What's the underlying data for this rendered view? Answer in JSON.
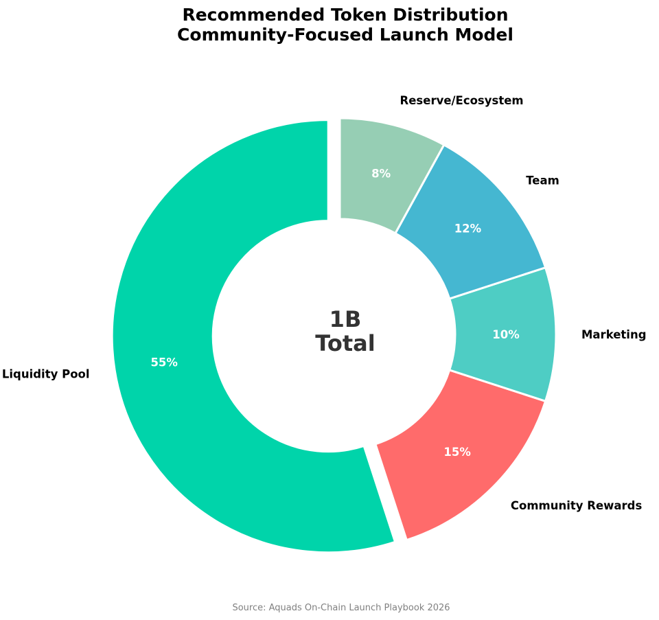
{
  "chart_data": {
    "type": "pie",
    "title_lines": [
      "Recommended Token Distribution",
      "Community-Focused Launch Model"
    ],
    "center_label_lines": [
      "1B",
      "Total"
    ],
    "source": "Source: Aquads On-Chain Launch Playbook 2026",
    "slices": [
      {
        "label": "Liquidity Pool",
        "value": 55,
        "pct_label": "55%",
        "color": "#00d4aa"
      },
      {
        "label": "Community Rewards",
        "value": 15,
        "pct_label": "15%",
        "color": "#ff6b6b"
      },
      {
        "label": "Marketing",
        "value": 10,
        "pct_label": "10%",
        "color": "#4ecdc4"
      },
      {
        "label": "Team",
        "value": 12,
        "pct_label": "12%",
        "color": "#45b7d1"
      },
      {
        "label": "Reserve/Ecosystem",
        "value": 8,
        "pct_label": "8%",
        "color": "#96ceb4"
      }
    ]
  }
}
